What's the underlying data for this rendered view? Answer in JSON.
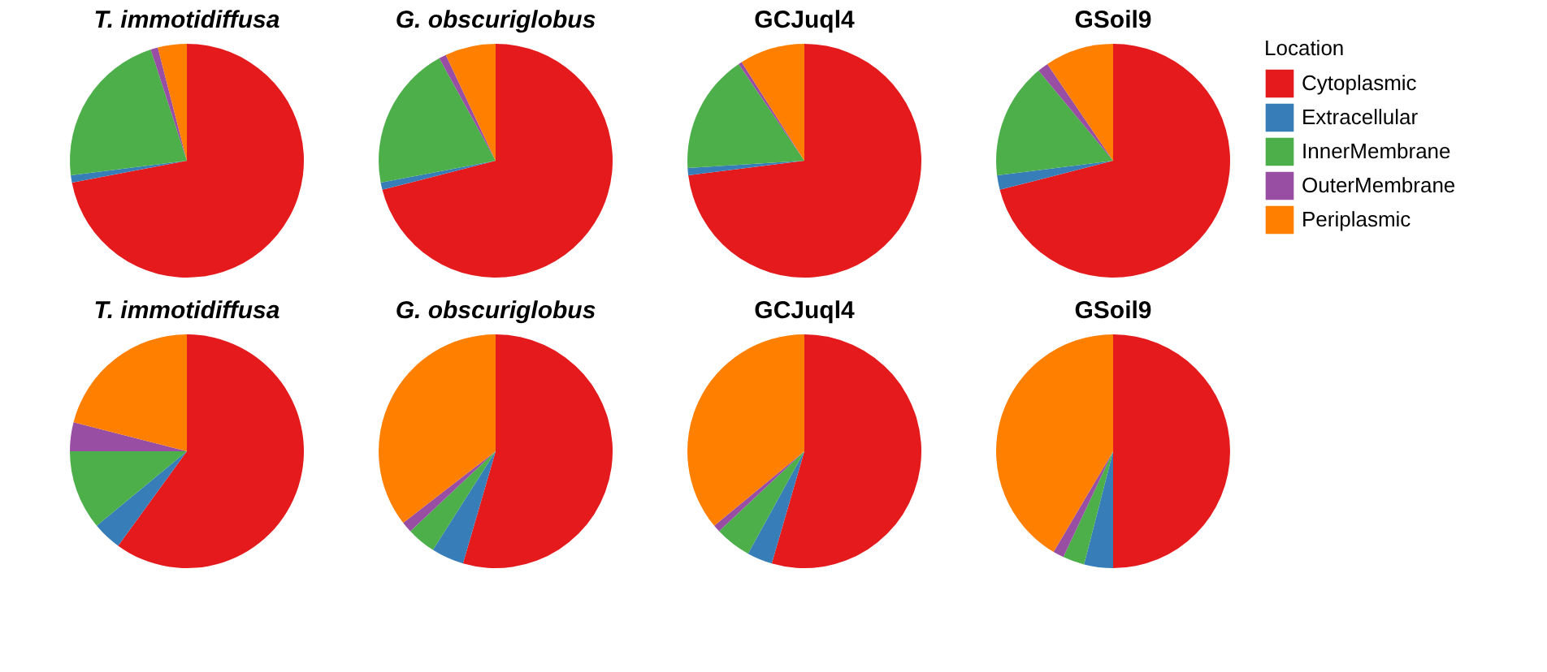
{
  "chart_data": [
    {
      "type": "pie",
      "title": "T. immotidiffusa",
      "categories": [
        "Cytoplasmic",
        "Extracellular",
        "InnerMembrane",
        "OuterMembrane",
        "Periplasmic"
      ],
      "values": [
        72,
        1,
        22,
        1,
        4
      ],
      "colors": [
        "#e41a1c",
        "#377eb8",
        "#4daf4a",
        "#984ea3",
        "#ff7f00"
      ],
      "legend": "right",
      "legend_title": "Location"
    },
    {
      "type": "pie",
      "title": "G.  obscuriglobus",
      "categories": [
        null,
        null,
        null,
        null,
        null
      ],
      "values": [
        71,
        1,
        20,
        1,
        7
      ],
      "colors": [
        "#e41a1c",
        "#377eb8",
        "#4daf4a",
        "#984ea3",
        "#ff7f00"
      ]
    },
    {
      "type": "pie",
      "title": "GCJuql4",
      "categories": [
        null,
        null,
        null,
        null,
        null
      ],
      "values": [
        73,
        1,
        16.5,
        0.5,
        9
      ],
      "colors": [
        "#e41a1c",
        "#377eb8",
        "#4daf4a",
        "#984ea3",
        "#ff7f00"
      ]
    },
    {
      "type": "pie",
      "title": "GSoil9",
      "categories": [
        null,
        null,
        null,
        null,
        null
      ],
      "values": [
        71,
        2,
        16,
        1.5,
        9.5
      ],
      "colors": [
        "#e41a1c",
        "#377eb8",
        "#4daf4a",
        "#984ea3",
        "#ff7f00"
      ]
    },
    {
      "type": "pie",
      "title": "T. immotidiffusa",
      "categories": [
        null,
        null,
        null,
        null,
        null
      ],
      "values": [
        60,
        4,
        11,
        4,
        21
      ],
      "colors": [
        "#e41a1c",
        "#377eb8",
        "#4daf4a",
        "#984ea3",
        "#ff7f00"
      ]
    },
    {
      "type": "pie",
      "title": "G.  obscuriglobus",
      "categories": [
        null,
        null,
        null,
        null,
        null
      ],
      "values": [
        54.5,
        4.5,
        4,
        1.5,
        35.5
      ],
      "colors": [
        "#e41a1c",
        "#377eb8",
        "#4daf4a",
        "#984ea3",
        "#ff7f00"
      ]
    },
    {
      "type": "pie",
      "title": "GCJuql4",
      "categories": [
        null,
        null,
        null,
        null,
        null
      ],
      "values": [
        54.5,
        3.5,
        5,
        1,
        36
      ],
      "colors": [
        "#e41a1c",
        "#377eb8",
        "#4daf4a",
        "#984ea3",
        "#ff7f00"
      ]
    },
    {
      "type": "pie",
      "title": "GSoil9",
      "categories": [
        null,
        null,
        null,
        null,
        null
      ],
      "values": [
        50,
        4,
        3,
        1.5,
        41.5
      ],
      "colors": [
        "#e41a1c",
        "#377eb8",
        "#4daf4a",
        "#984ea3",
        "#ff7f00"
      ]
    }
  ]
}
